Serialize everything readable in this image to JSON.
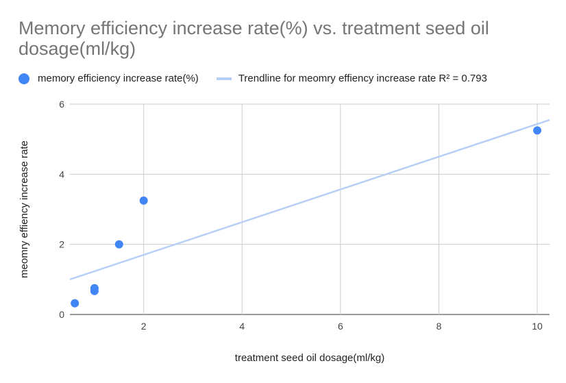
{
  "chart_data": {
    "type": "scatter",
    "title": "Memory efficiency increase rate(%) vs. treatment seed oil dosage(ml/kg)",
    "xlabel": "treatment seed oil dosage(ml/kg)",
    "ylabel": "meomry effiency increase rate",
    "xlim": [
      0.5,
      10.25
    ],
    "ylim": [
      0,
      6
    ],
    "x_ticks": [
      2,
      4,
      6,
      8,
      10
    ],
    "y_ticks": [
      0,
      2,
      4,
      6
    ],
    "grid": true,
    "legend_position": "top-left",
    "series": [
      {
        "name": "memory efficiency increase rate(%)",
        "color": "#4285f4",
        "points": [
          {
            "x": 0.6,
            "y": 0.32
          },
          {
            "x": 1.0,
            "y": 0.75
          },
          {
            "x": 1.0,
            "y": 0.67
          },
          {
            "x": 1.5,
            "y": 2.0
          },
          {
            "x": 2.0,
            "y": 3.25
          },
          {
            "x": 10.0,
            "y": 5.25
          }
        ]
      }
    ],
    "trendline": {
      "name": "Trendline for meomry effiency increase rate R² = 0.793",
      "color": "#b7cff8",
      "from": {
        "x": 0.5,
        "y": 1.0
      },
      "to": {
        "x": 10.25,
        "y": 5.55
      }
    }
  }
}
